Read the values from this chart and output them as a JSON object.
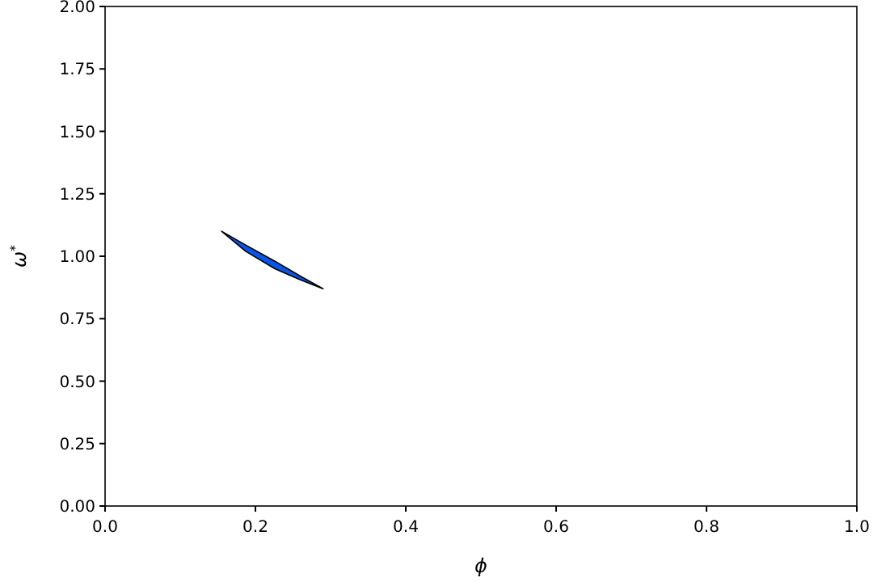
{
  "chart_data": {
    "type": "area",
    "xlabel": "ϕ",
    "ylabel": "ω$^{*}$",
    "xlim": [
      0,
      1
    ],
    "ylim": [
      0,
      2
    ],
    "xticks": [
      {
        "value": 0,
        "label": "0.0"
      },
      {
        "value": 0.2,
        "label": "0.2"
      },
      {
        "value": 0.4,
        "label": "0.4"
      },
      {
        "value": 0.6,
        "label": "0.6"
      },
      {
        "value": 0.8,
        "label": "0.8"
      },
      {
        "value": 1,
        "label": "1.0"
      }
    ],
    "yticks": [
      {
        "value": 0,
        "label": "0.00"
      },
      {
        "value": 0.25,
        "label": "0.25"
      },
      {
        "value": 0.5,
        "label": "0.50"
      },
      {
        "value": 0.75,
        "label": "0.75"
      },
      {
        "value": 1,
        "label": "1.00"
      },
      {
        "value": 1.25,
        "label": "1.25"
      },
      {
        "value": 1.5,
        "label": "1.50"
      },
      {
        "value": 1.75,
        "label": "1.75"
      },
      {
        "value": 2,
        "label": "2.00"
      }
    ],
    "series": [
      {
        "color": "#0a55e8",
        "x": [
          0.155,
          0.187,
          0.226,
          0.26,
          0.29,
          0.26,
          0.226,
          0.187
        ],
        "values": [
          1.1,
          1.045,
          0.98,
          0.92,
          0.87,
          0.905,
          0.95,
          1.02
        ]
      }
    ]
  }
}
